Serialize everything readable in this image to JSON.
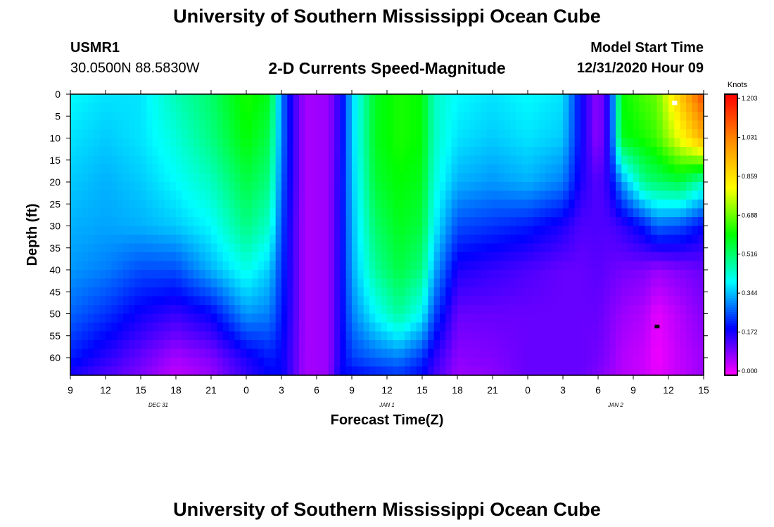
{
  "header": {
    "title": "University of Southern Mississippi Ocean Cube",
    "station_id": "USMR1",
    "station_coords": "30.0500N 88.5830W",
    "plot_title": "2-D Currents Speed-Magnitude",
    "model_start_label": "Model Start Time",
    "model_start_value": "12/31/2020 Hour 09"
  },
  "footer": {
    "title": "University of Southern Mississippi Ocean Cube"
  },
  "chart_data": {
    "type": "heatmap",
    "title": "2-D Currents Speed-Magnitude",
    "xlabel": "Forecast Time(Z)",
    "ylabel": "Depth (ft)",
    "x_unit": "hours since 12/31/2020 09Z",
    "x_tick_labels": [
      "9",
      "12",
      "15",
      "18",
      "21",
      "0",
      "3",
      "6",
      "9",
      "12",
      "15",
      "18",
      "21",
      "0",
      "3",
      "6",
      "9",
      "12",
      "15"
    ],
    "date_labels": [
      "DEC 31",
      "JAN 1",
      "JAN 2"
    ],
    "y_ticks": [
      0,
      5,
      10,
      15,
      20,
      25,
      30,
      35,
      40,
      45,
      50,
      55,
      60
    ],
    "ylim": [
      64,
      0
    ],
    "colorbar": {
      "label": "Knots",
      "ticks": [
        "0.000",
        "0.172",
        "0.344",
        "0.516",
        "0.688",
        "0.859",
        "1.031",
        "1.203"
      ],
      "colors": [
        "#ff00ff",
        "#0000ff",
        "#00ffff",
        "#00ff00",
        "#ffff00",
        "#ff8c00",
        "#ff0000"
      ]
    },
    "max_marker": {
      "hour": 51.5,
      "depth": 2
    },
    "min_marker": {
      "hour": 50,
      "depth": 53
    },
    "depth_rows": [
      0,
      10,
      20,
      30,
      40,
      50,
      60,
      64
    ],
    "speed_columns": [
      {
        "hour": 0,
        "speeds": [
          0.4,
          0.38,
          0.36,
          0.34,
          0.32,
          0.28,
          0.22,
          0.18
        ]
      },
      {
        "hour": 3,
        "speeds": [
          0.38,
          0.36,
          0.34,
          0.33,
          0.3,
          0.24,
          0.17,
          0.14
        ]
      },
      {
        "hour": 6,
        "speeds": [
          0.38,
          0.38,
          0.36,
          0.34,
          0.26,
          0.19,
          0.12,
          0.1
        ]
      },
      {
        "hour": 9,
        "speeds": [
          0.46,
          0.43,
          0.4,
          0.36,
          0.26,
          0.16,
          0.07,
          0.05
        ]
      },
      {
        "hour": 12,
        "speeds": [
          0.52,
          0.5,
          0.45,
          0.4,
          0.34,
          0.2,
          0.1,
          0.08
        ]
      },
      {
        "hour": 15,
        "speeds": [
          0.62,
          0.6,
          0.55,
          0.5,
          0.42,
          0.32,
          0.18,
          0.16
        ]
      },
      {
        "hour": 17,
        "speeds": [
          0.58,
          0.54,
          0.5,
          0.44,
          0.36,
          0.3,
          0.22,
          0.2
        ]
      },
      {
        "hour": 18,
        "speeds": [
          0.3,
          0.3,
          0.28,
          0.26,
          0.24,
          0.22,
          0.2,
          0.2
        ]
      },
      {
        "hour": 19,
        "speeds": [
          0.16,
          0.16,
          0.16,
          0.15,
          0.15,
          0.15,
          0.14,
          0.14
        ]
      },
      {
        "hour": 20,
        "speeds": [
          0.07,
          0.07,
          0.07,
          0.07,
          0.07,
          0.07,
          0.07,
          0.07
        ]
      },
      {
        "hour": 22,
        "speeds": [
          0.08,
          0.08,
          0.08,
          0.08,
          0.08,
          0.08,
          0.08,
          0.08
        ]
      },
      {
        "hour": 23,
        "speeds": [
          0.17,
          0.17,
          0.18,
          0.18,
          0.18,
          0.18,
          0.18,
          0.2
        ]
      },
      {
        "hour": 24,
        "speeds": [
          0.36,
          0.36,
          0.35,
          0.34,
          0.33,
          0.3,
          0.25,
          0.2
        ]
      },
      {
        "hour": 26,
        "speeds": [
          0.58,
          0.58,
          0.56,
          0.52,
          0.48,
          0.4,
          0.28,
          0.22
        ]
      },
      {
        "hour": 28,
        "speeds": [
          0.62,
          0.62,
          0.6,
          0.58,
          0.55,
          0.48,
          0.3,
          0.24
        ]
      },
      {
        "hour": 30,
        "speeds": [
          0.6,
          0.6,
          0.58,
          0.55,
          0.5,
          0.4,
          0.24,
          0.2
        ]
      },
      {
        "hour": 31,
        "speeds": [
          0.45,
          0.45,
          0.43,
          0.4,
          0.34,
          0.26,
          0.17,
          0.15
        ]
      },
      {
        "hour": 33,
        "speeds": [
          0.4,
          0.38,
          0.34,
          0.26,
          0.18,
          0.12,
          0.09,
          0.08
        ]
      },
      {
        "hour": 36,
        "speeds": [
          0.38,
          0.36,
          0.32,
          0.24,
          0.16,
          0.12,
          0.1,
          0.09
        ]
      },
      {
        "hour": 39,
        "speeds": [
          0.4,
          0.38,
          0.34,
          0.22,
          0.14,
          0.12,
          0.12,
          0.12
        ]
      },
      {
        "hour": 42,
        "speeds": [
          0.38,
          0.36,
          0.3,
          0.18,
          0.12,
          0.12,
          0.12,
          0.12
        ]
      },
      {
        "hour": 43.5,
        "speeds": [
          0.2,
          0.2,
          0.18,
          0.14,
          0.12,
          0.12,
          0.12,
          0.12
        ]
      },
      {
        "hour": 45,
        "speeds": [
          0.08,
          0.08,
          0.13,
          0.14,
          0.13,
          0.12,
          0.11,
          0.1
        ]
      },
      {
        "hour": 46,
        "speeds": [
          0.2,
          0.2,
          0.18,
          0.14,
          0.12,
          0.1,
          0.09,
          0.08
        ]
      },
      {
        "hour": 47,
        "speeds": [
          0.6,
          0.58,
          0.32,
          0.16,
          0.11,
          0.08,
          0.06,
          0.06
        ]
      },
      {
        "hour": 49,
        "speeds": [
          0.66,
          0.62,
          0.5,
          0.22,
          0.1,
          0.06,
          0.04,
          0.04
        ]
      },
      {
        "hour": 50,
        "speeds": [
          0.68,
          0.65,
          0.52,
          0.28,
          0.08,
          0.02,
          0.01,
          0.02
        ]
      },
      {
        "hour": 52,
        "speeds": [
          0.9,
          0.8,
          0.55,
          0.26,
          0.1,
          0.06,
          0.05,
          0.05
        ]
      },
      {
        "hour": 54,
        "speeds": [
          1.1,
          0.95,
          0.45,
          0.2,
          0.12,
          0.1,
          0.08,
          0.08
        ]
      }
    ]
  }
}
